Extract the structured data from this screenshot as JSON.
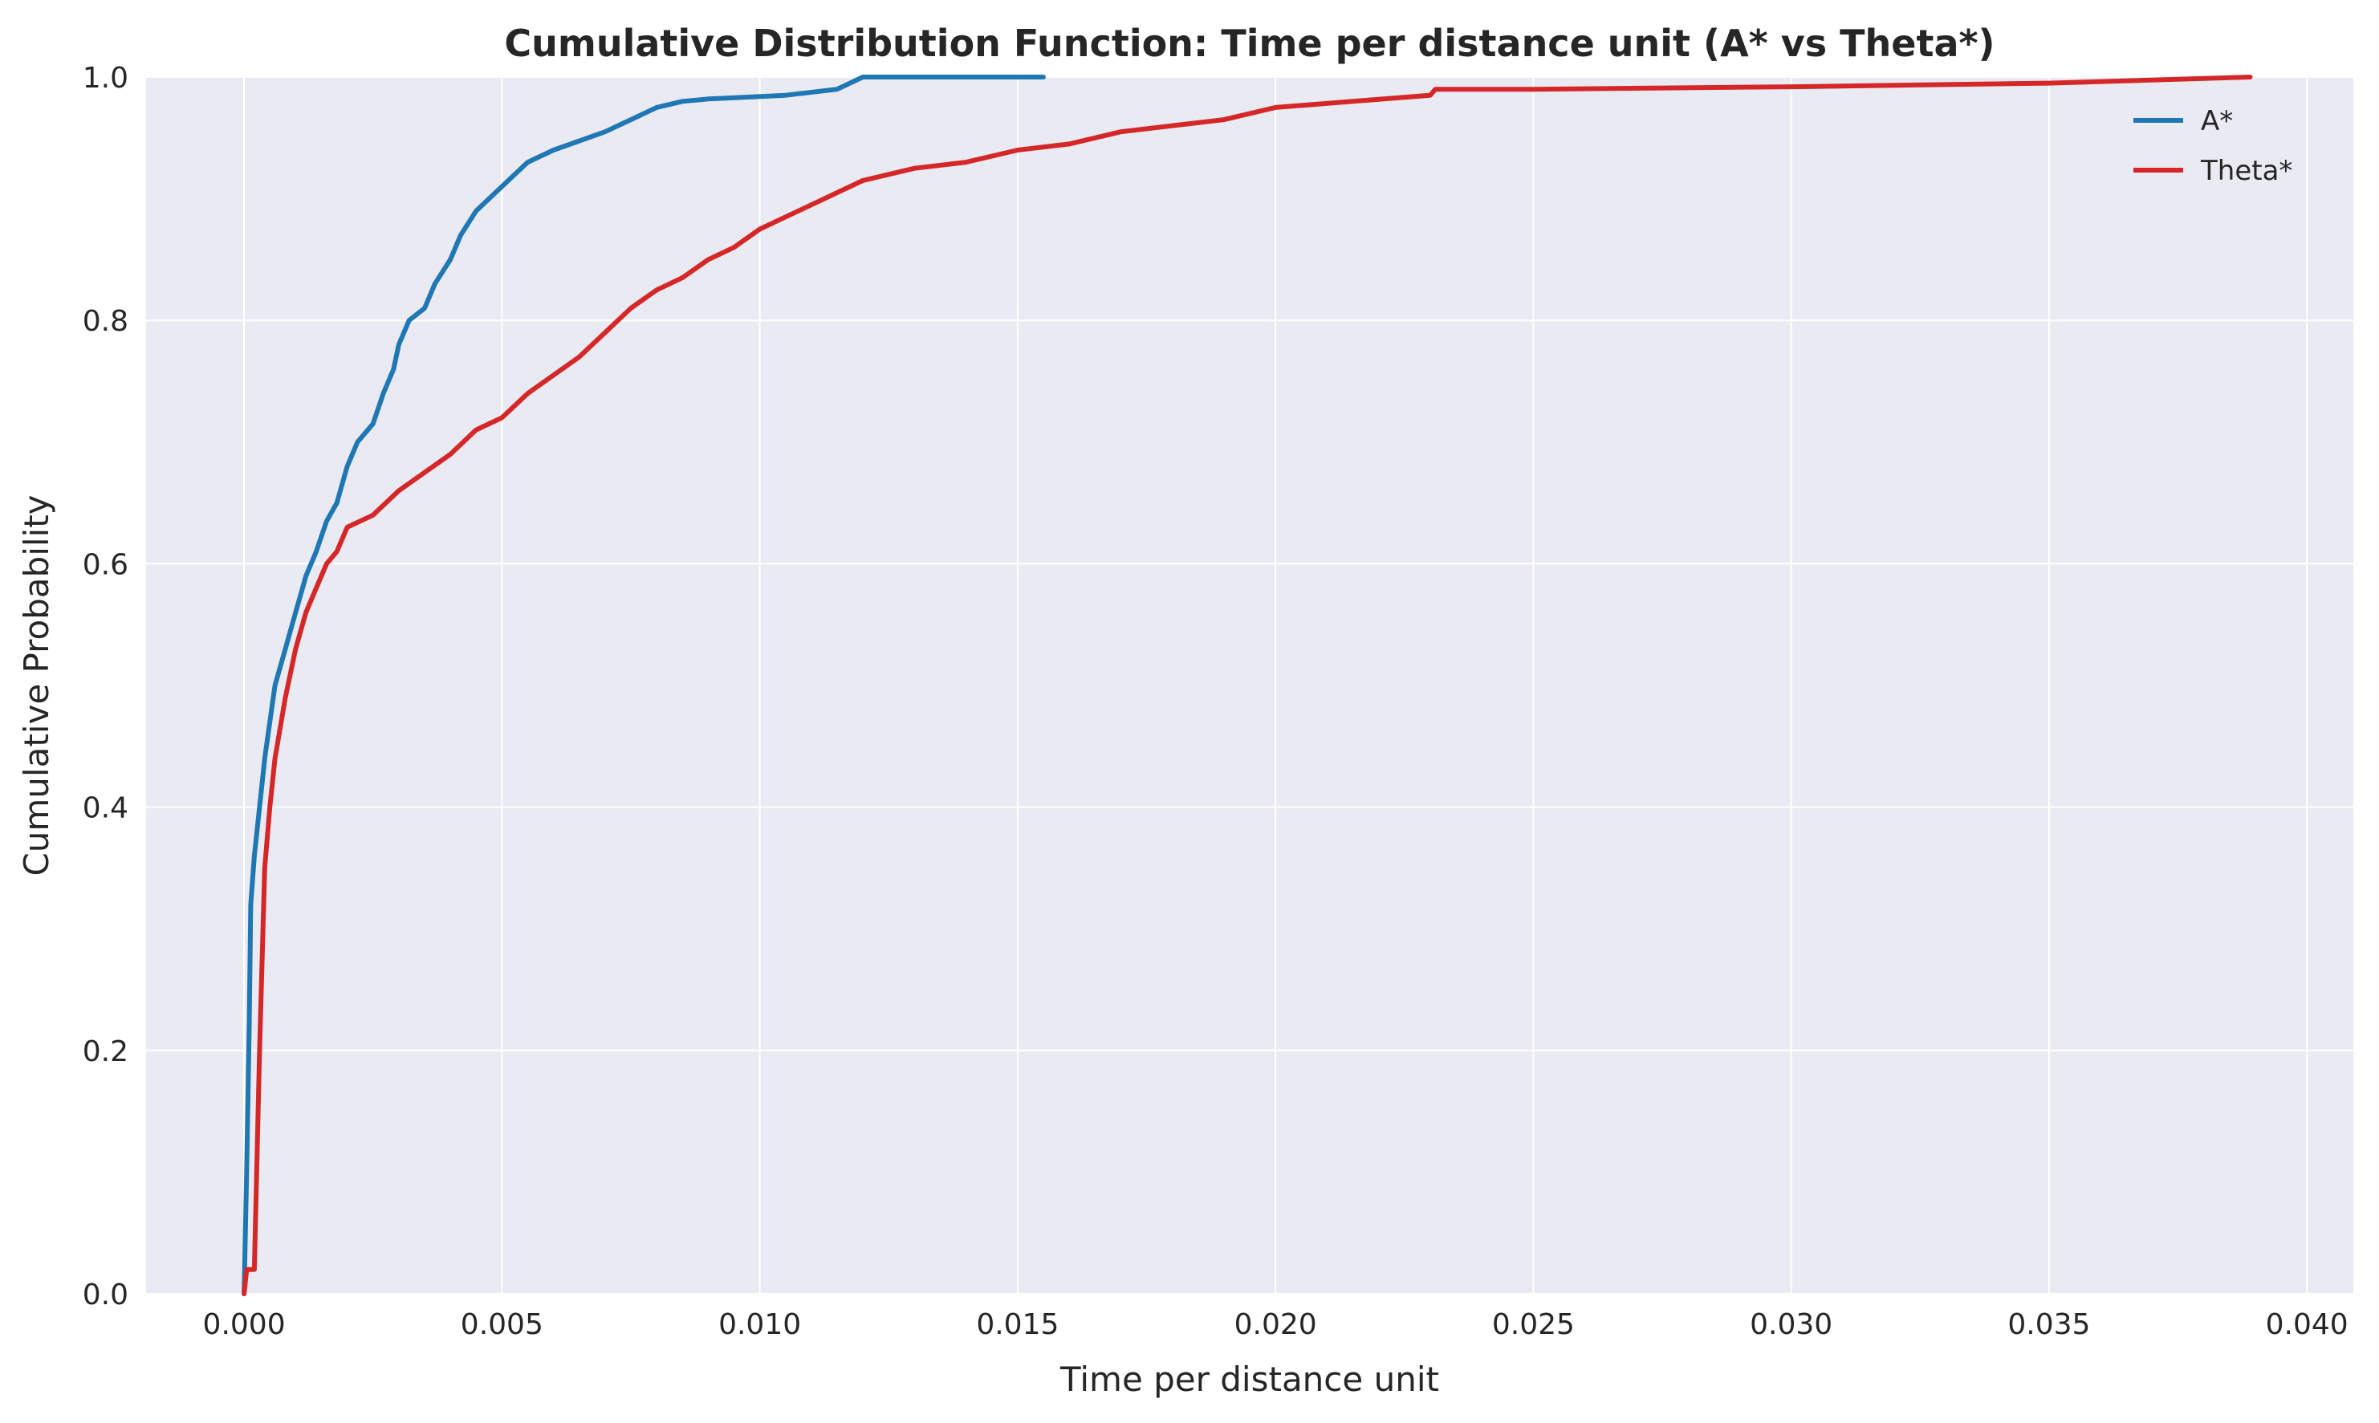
{
  "chart_data": {
    "type": "line",
    "title": "Cumulative Distribution Function: Time per distance unit (A* vs Theta*)",
    "xlabel": "Time per distance unit",
    "ylabel": "Cumulative Probability",
    "xlim": [
      -0.0019,
      0.0409
    ],
    "ylim": [
      0.0,
      1.0
    ],
    "xticks": [
      0.0,
      0.005,
      0.01,
      0.015,
      0.02,
      0.025,
      0.03,
      0.035,
      0.04
    ],
    "xtick_labels": [
      "0.000",
      "0.005",
      "0.010",
      "0.015",
      "0.020",
      "0.025",
      "0.030",
      "0.035",
      "0.040"
    ],
    "yticks": [
      0.0,
      0.2,
      0.4,
      0.6,
      0.8,
      1.0
    ],
    "ytick_labels": [
      "0.0",
      "0.2",
      "0.4",
      "0.6",
      "0.8",
      "1.0"
    ],
    "grid": true,
    "legend_position": "top-right",
    "background": "#eaeaf2",
    "series": [
      {
        "name": "A*",
        "color": "#1f77b4",
        "points": [
          [
            0.0,
            0.0
          ],
          [
            5e-05,
            0.1
          ],
          [
            0.0001,
            0.22
          ],
          [
            0.00013,
            0.32
          ],
          [
            0.0002,
            0.36
          ],
          [
            0.0003,
            0.4
          ],
          [
            0.0004,
            0.44
          ],
          [
            0.0005,
            0.47
          ],
          [
            0.0006,
            0.5
          ],
          [
            0.0008,
            0.53
          ],
          [
            0.001,
            0.56
          ],
          [
            0.0012,
            0.59
          ],
          [
            0.0014,
            0.61
          ],
          [
            0.0016,
            0.635
          ],
          [
            0.0018,
            0.65
          ],
          [
            0.002,
            0.68
          ],
          [
            0.0022,
            0.7
          ],
          [
            0.0025,
            0.715
          ],
          [
            0.0027,
            0.74
          ],
          [
            0.0029,
            0.76
          ],
          [
            0.003,
            0.78
          ],
          [
            0.0032,
            0.8
          ],
          [
            0.0035,
            0.81
          ],
          [
            0.0037,
            0.83
          ],
          [
            0.004,
            0.85
          ],
          [
            0.0042,
            0.87
          ],
          [
            0.0045,
            0.89
          ],
          [
            0.005,
            0.91
          ],
          [
            0.0055,
            0.93
          ],
          [
            0.006,
            0.94
          ],
          [
            0.007,
            0.955
          ],
          [
            0.0075,
            0.965
          ],
          [
            0.008,
            0.975
          ],
          [
            0.0085,
            0.98
          ],
          [
            0.009,
            0.982
          ],
          [
            0.0105,
            0.985
          ],
          [
            0.0115,
            0.99
          ],
          [
            0.012,
            1.0
          ],
          [
            0.0155,
            1.0
          ]
        ]
      },
      {
        "name": "Theta*",
        "color": "#d62728",
        "points": [
          [
            0.0,
            0.0
          ],
          [
            5e-05,
            0.02
          ],
          [
            0.0002,
            0.02
          ],
          [
            0.0003,
            0.2
          ],
          [
            0.0004,
            0.35
          ],
          [
            0.0005,
            0.4
          ],
          [
            0.0006,
            0.44
          ],
          [
            0.0008,
            0.49
          ],
          [
            0.001,
            0.53
          ],
          [
            0.0012,
            0.56
          ],
          [
            0.0014,
            0.58
          ],
          [
            0.0016,
            0.6
          ],
          [
            0.0018,
            0.61
          ],
          [
            0.002,
            0.63
          ],
          [
            0.0025,
            0.64
          ],
          [
            0.003,
            0.66
          ],
          [
            0.0035,
            0.675
          ],
          [
            0.004,
            0.69
          ],
          [
            0.0045,
            0.71
          ],
          [
            0.005,
            0.72
          ],
          [
            0.0055,
            0.74
          ],
          [
            0.006,
            0.755
          ],
          [
            0.0065,
            0.77
          ],
          [
            0.007,
            0.79
          ],
          [
            0.0075,
            0.81
          ],
          [
            0.008,
            0.825
          ],
          [
            0.0085,
            0.835
          ],
          [
            0.009,
            0.85
          ],
          [
            0.0095,
            0.86
          ],
          [
            0.01,
            0.875
          ],
          [
            0.0105,
            0.885
          ],
          [
            0.011,
            0.895
          ],
          [
            0.0115,
            0.905
          ],
          [
            0.012,
            0.915
          ],
          [
            0.013,
            0.925
          ],
          [
            0.014,
            0.93
          ],
          [
            0.015,
            0.94
          ],
          [
            0.016,
            0.945
          ],
          [
            0.017,
            0.955
          ],
          [
            0.018,
            0.96
          ],
          [
            0.019,
            0.965
          ],
          [
            0.02,
            0.975
          ],
          [
            0.0215,
            0.98
          ],
          [
            0.023,
            0.985
          ],
          [
            0.0231,
            0.99
          ],
          [
            0.025,
            0.99
          ],
          [
            0.03,
            0.992
          ],
          [
            0.035,
            0.995
          ],
          [
            0.0389,
            1.0
          ]
        ]
      }
    ]
  }
}
